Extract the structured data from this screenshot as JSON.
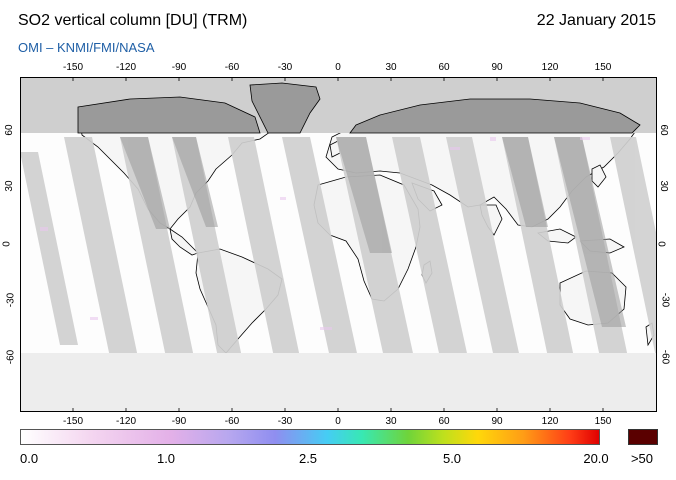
{
  "header": {
    "title": "SO2 vertical column [DU] (TRM)",
    "date": "22 January 2015",
    "subtitle": "OMI  –  KNMI/FMI/NASA"
  },
  "map": {
    "projection": "equirectangular",
    "lon_ticks": [
      "-150",
      "-120",
      "-90",
      "-60",
      "-30",
      "0",
      "30",
      "60",
      "90",
      "120",
      "150"
    ],
    "lat_ticks": [
      "60",
      "30",
      "0",
      "-30",
      "-60"
    ],
    "colors": {
      "no_data": "#cfcfcf",
      "land_no_data": "#9a9a9a",
      "orbit_gap": "#d0d0d0",
      "orbit_gap_land": "#a0a0a0",
      "coastline": "#000000"
    }
  },
  "colorbar": {
    "labels": [
      "0.0",
      "1.0",
      "2.5",
      "5.0",
      "20.0"
    ],
    "overflow_label": ">50",
    "overflow_color": "#5a0000"
  }
}
